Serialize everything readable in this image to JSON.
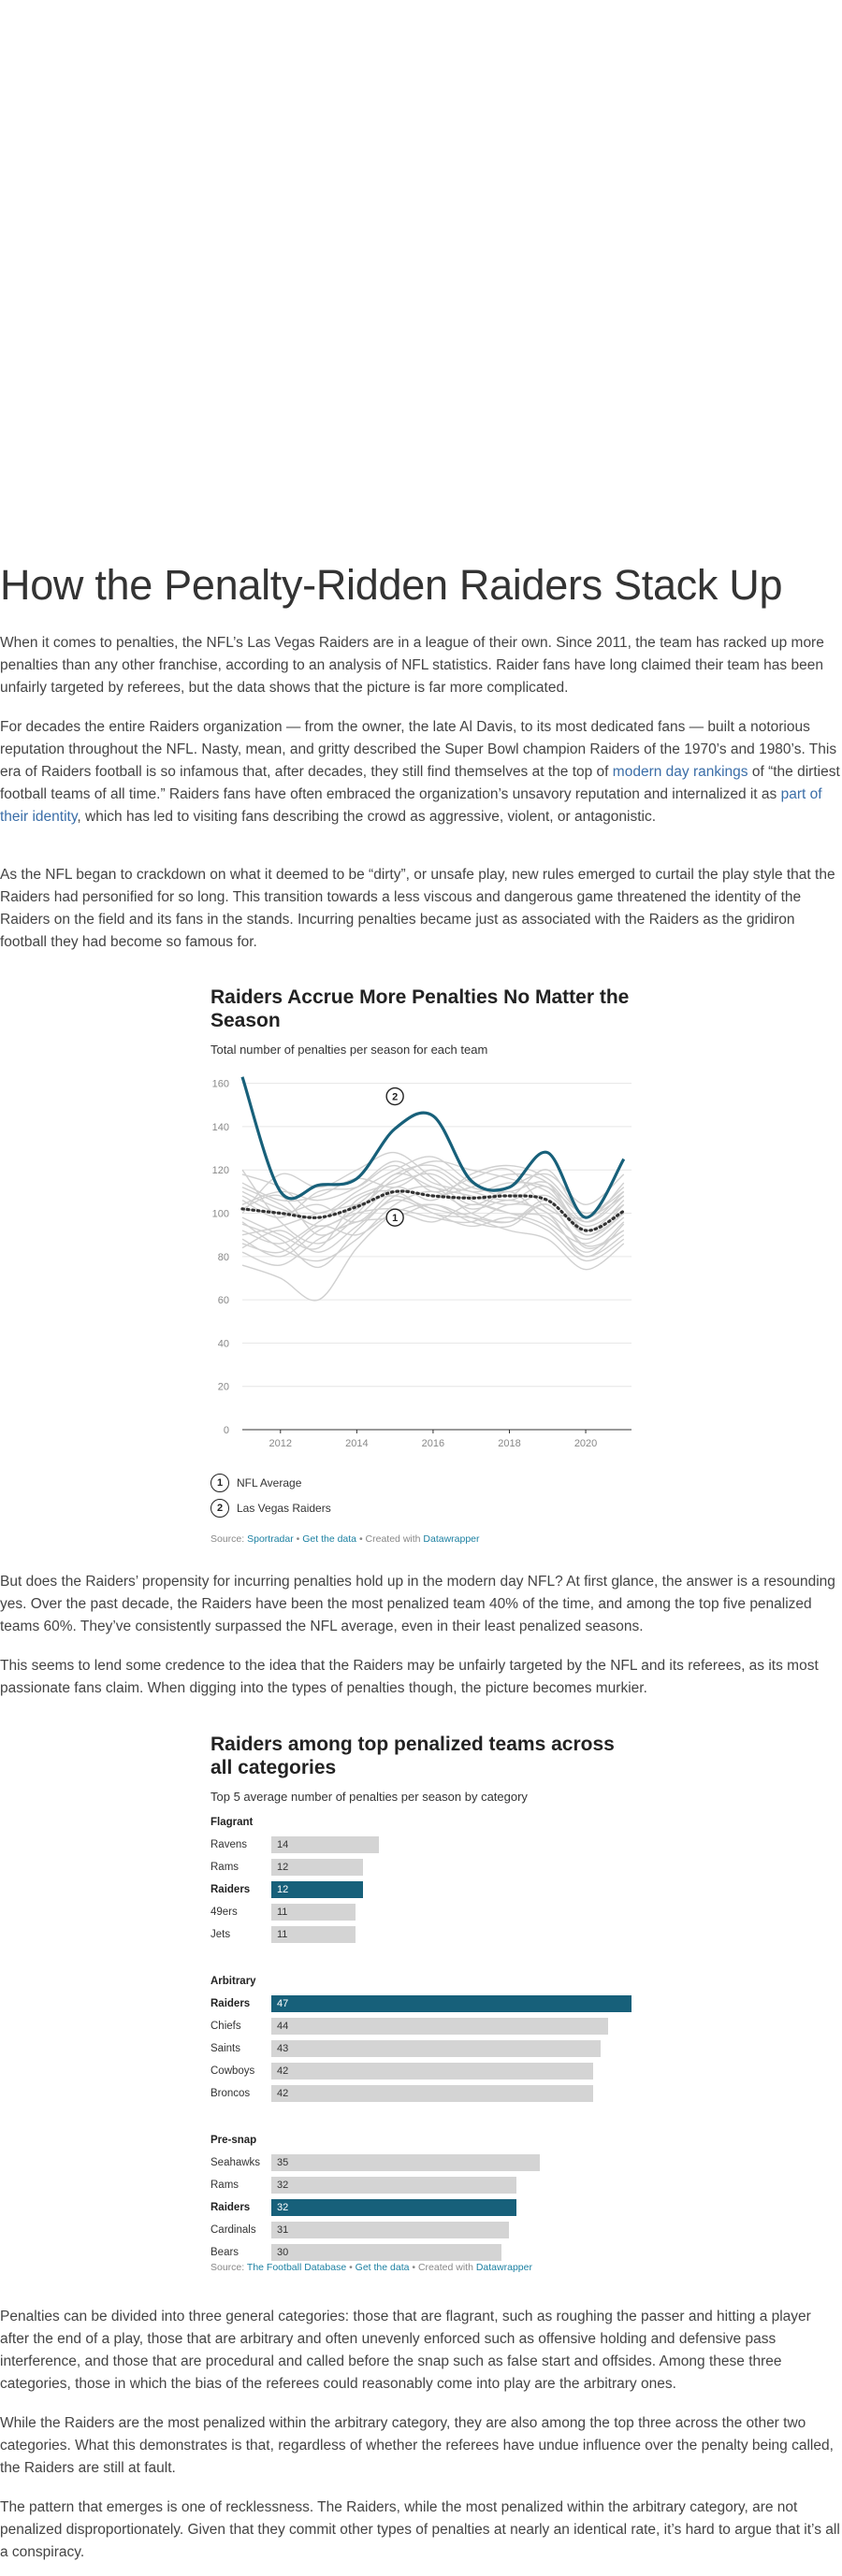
{
  "article": {
    "title": "How the Penalty-Ridden Raiders Stack Up",
    "paragraphs": [
      "When it comes to penalties, the NFL’s Las Vegas Raiders are in a league of their own. Since 2011, the team has racked up more penalties than any other franchise, according to an analysis of NFL statistics. Raider fans have long claimed their team has been unfairly targeted by referees, but the data shows that the picture is far more complicated.",
      {
        "before": "For decades the entire Raiders organization — from the owner, the late Al Davis, to its most dedicated fans — built a notorious reputation throughout the NFL. Nasty, mean, and gritty described the Super Bowl champion Raiders of the 1970’s and 1980’s. This era of Raiders football is so infamous that, after decades, they still find themselves at the top of ",
        "link1": "modern day rankings",
        "middle": " of “the dirtiest football teams of all time.” Raiders fans have often embraced the organization’s unsavory reputation and internalized it as ",
        "link2": "part of their identity",
        "after": ", which has led to visiting fans describing the crowd as aggressive, violent, or antagonistic."
      },
      "As the NFL began to crackdown on what it deemed to be “dirty”, or unsafe play, new rules emerged to curtail the play style that the Raiders had personified for so long. This transition towards a less viscous and dangerous game threatened the identity of the Raiders on the field and its fans in the stands. Incurring penalties became just as associated with the Raiders as the gridiron football they had become so famous for.",
      "But does the Raiders’ propensity for incurring penalties hold up in the modern day NFL? At first glance, the answer is a resounding yes. Over the past decade, the Raiders have been the most penalized team 40% of the time, and among the top five penalized teams 60%. They’ve consistently surpassed the NFL average, even in their least penalized seasons.",
      "This seems to lend some credence to the idea that the Raiders may be unfairly targeted by the NFL and its referees, as its most passionate fans claim. When digging into the types of penalties though, the picture becomes murkier.",
      "Penalties can be divided into three general categories: those that are flagrant, such as roughing the passer and hitting a player after the end of a play, those that are arbitrary and often unevenly enforced such as offensive holding and defensive pass interference, and those that are procedural and called before the snap such as false start and offsides. Among these three categories, those in which the bias of the referees could reasonably come into play are the arbitrary ones.",
      "While the Raiders are the most penalized within the arbitrary category, they are also among the top three across the other two categories. What this demonstrates is that, regardless of whether the referees have undue influence over the penalty being called, the Raiders are still at fault.",
      "The pattern that emerges is one of recklessness. The Raiders, while the most penalized within the arbitrary category, are not penalized disproportionately. Given that they commit other types of penalties at nearly an identical rate, it’s hard to argue that it’s all a conspiracy."
    ]
  },
  "chart_data": [
    {
      "type": "line",
      "title": "Raiders Accrue More Penalties No Matter the Season",
      "subtitle": "Total number of penalties per season for each team",
      "x": [
        2011,
        2012,
        2013,
        2014,
        2015,
        2016,
        2017,
        2018,
        2019,
        2020,
        2021
      ],
      "xticks": [
        2012,
        2014,
        2016,
        2018,
        2020
      ],
      "yticks": [
        0,
        20,
        40,
        60,
        80,
        100,
        120,
        140,
        160
      ],
      "ylim": [
        0,
        162
      ],
      "xlim": [
        2011,
        2021.2
      ],
      "grid": true,
      "series": [
        {
          "name": "NFL Average",
          "label_number": "1",
          "style": "dotted",
          "color": "#333333",
          "values": [
            102,
            100,
            98,
            103,
            110,
            108,
            107,
            108,
            106,
            92,
            101
          ]
        },
        {
          "name": "Las Vegas Raiders",
          "label_number": "2",
          "style": "solid",
          "color": "#17607a",
          "values": [
            163,
            110,
            113,
            116,
            139,
            145,
            115,
            112,
            128,
            98,
            125
          ]
        }
      ],
      "background_series": [
        [
          95,
          88,
          75,
          92,
          108,
          112,
          100,
          96,
          104,
          85,
          92
        ],
        [
          110,
          102,
          98,
          104,
          118,
          122,
          112,
          110,
          114,
          96,
          108
        ],
        [
          88,
          80,
          92,
          100,
          102,
          98,
          96,
          104,
          100,
          80,
          95
        ],
        [
          120,
          96,
          86,
          98,
          112,
          106,
          118,
          122,
          116,
          100,
          112
        ],
        [
          76,
          70,
          60,
          84,
          100,
          104,
          98,
          92,
          88,
          74,
          86
        ],
        [
          104,
          110,
          106,
          112,
          124,
          114,
          110,
          106,
          112,
          90,
          104
        ],
        [
          92,
          86,
          96,
          108,
          114,
          118,
          106,
          100,
          98,
          82,
          96
        ],
        [
          100,
          118,
          112,
          120,
          128,
          116,
          104,
          112,
          118,
          104,
          118
        ],
        [
          84,
          92,
          82,
          94,
          106,
          100,
          94,
          98,
          92,
          78,
          88
        ],
        [
          112,
          104,
          94,
          102,
          116,
          124,
          120,
          116,
          110,
          96,
          110
        ],
        [
          96,
          84,
          78,
          88,
          104,
          110,
          102,
          106,
          100,
          88,
          100
        ],
        [
          108,
          100,
          104,
          96,
          110,
          108,
          112,
          118,
          114,
          92,
          106
        ],
        [
          82,
          76,
          88,
          96,
          98,
          104,
          96,
          94,
          104,
          84,
          92
        ],
        [
          118,
          112,
          100,
          110,
          120,
          126,
          114,
          108,
          120,
          98,
          114
        ],
        [
          90,
          94,
          100,
          104,
          108,
          102,
          100,
          110,
          96,
          86,
          98
        ],
        [
          102,
          108,
          90,
          100,
          118,
          112,
          108,
          104,
          108,
          94,
          104
        ],
        [
          86,
          82,
          94,
          90,
          100,
          96,
          104,
          100,
          94,
          80,
          90
        ],
        [
          114,
          106,
          108,
          116,
          112,
          120,
          110,
          114,
          112,
          100,
          110
        ],
        [
          98,
          90,
          84,
          106,
          110,
          100,
          98,
          96,
          106,
          90,
          100
        ],
        [
          106,
          98,
          110,
          112,
          122,
          110,
          116,
          120,
          102,
          98,
          108
        ]
      ],
      "annotations": [
        {
          "number": "1",
          "x": 2015,
          "y": 98
        },
        {
          "number": "2",
          "x": 2015,
          "y": 154
        }
      ],
      "legend": [
        {
          "number": "1",
          "label": "NFL Average"
        },
        {
          "number": "2",
          "label": "Las Vegas Raiders"
        }
      ],
      "source": {
        "prefix": "Source: ",
        "link1": "Sportradar",
        "sep": " • ",
        "link2": "Get the data",
        "middle": " • Created with ",
        "link3": "Datawrapper"
      }
    },
    {
      "type": "bar",
      "title": "Raiders among top penalized teams across all categories",
      "subtitle": "Top 5 average number of penalties per season by category",
      "xlim": [
        0,
        47
      ],
      "groups": [
        {
          "name": "Flagrant",
          "categories": [
            "Ravens",
            "Rams",
            "Raiders",
            "49ers",
            "Jets"
          ],
          "values": [
            14,
            12,
            12,
            11,
            11
          ],
          "highlight_index": 2
        },
        {
          "name": "Arbitrary",
          "categories": [
            "Raiders",
            "Chiefs",
            "Saints",
            "Cowboys",
            "Broncos"
          ],
          "values": [
            47,
            44,
            43,
            42,
            42
          ],
          "highlight_index": 0
        },
        {
          "name": "Pre-snap",
          "categories": [
            "Seahawks",
            "Rams",
            "Raiders",
            "Cardinals",
            "Bears"
          ],
          "values": [
            35,
            32,
            32,
            31,
            30
          ],
          "highlight_index": 2
        }
      ],
      "colors": {
        "highlight": "#17607a",
        "default": "#d4d4d4"
      },
      "source": {
        "prefix": "Source: ",
        "link1": "The Football Database",
        "sep": " • ",
        "link2": "Get the data",
        "middle": " • Created with ",
        "link3": "Datawrapper"
      }
    }
  ]
}
